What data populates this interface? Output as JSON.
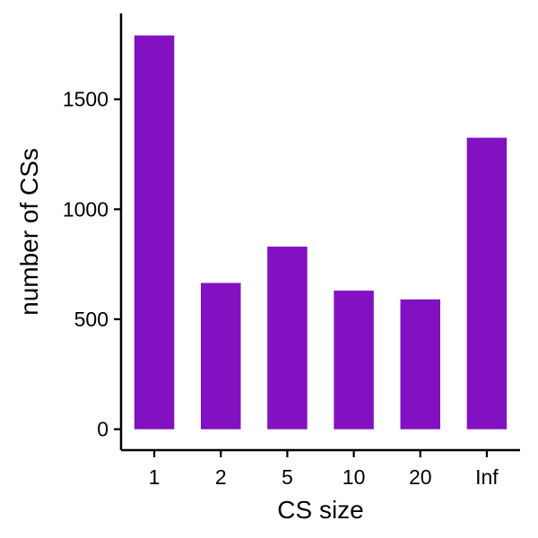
{
  "chart_data": {
    "type": "bar",
    "categories": [
      "1",
      "2",
      "5",
      "10",
      "20",
      "Inf"
    ],
    "values": [
      1790,
      665,
      830,
      630,
      590,
      1325
    ],
    "xlabel": "CS size",
    "ylabel": "number of CSs",
    "ylim": [
      -95,
      1890
    ],
    "yticks": [
      0,
      500,
      1000,
      1500
    ],
    "bar_color": "#8211C1",
    "grid": false,
    "legend": "none"
  }
}
